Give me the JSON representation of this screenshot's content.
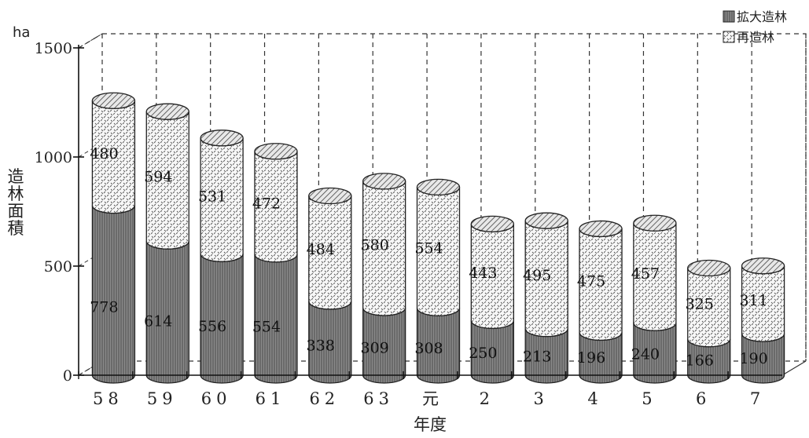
{
  "chart_data": {
    "type": "bar",
    "stacked": true,
    "style": "3d-cylinder",
    "unit": "ha",
    "ylabel": "造林面積",
    "xlabel": "年度",
    "ylim": [
      0,
      1500
    ],
    "yticks": [
      0,
      500,
      1000,
      1500
    ],
    "categories": [
      "58",
      "59",
      "60",
      "61",
      "62",
      "63",
      "元",
      "2",
      "3",
      "4",
      "5",
      "6",
      "7"
    ],
    "series": [
      {
        "name": "拡大造林",
        "fill": "dark-vertical-lines",
        "values": [
          778,
          614,
          556,
          554,
          338,
          309,
          308,
          250,
          213,
          196,
          240,
          166,
          190
        ]
      },
      {
        "name": "再造林",
        "fill": "dotted",
        "values": [
          480,
          594,
          531,
          472,
          484,
          580,
          554,
          443,
          495,
          475,
          457,
          325,
          311
        ]
      }
    ],
    "legend_position": "top-right",
    "grid": "dashed-vertical"
  }
}
